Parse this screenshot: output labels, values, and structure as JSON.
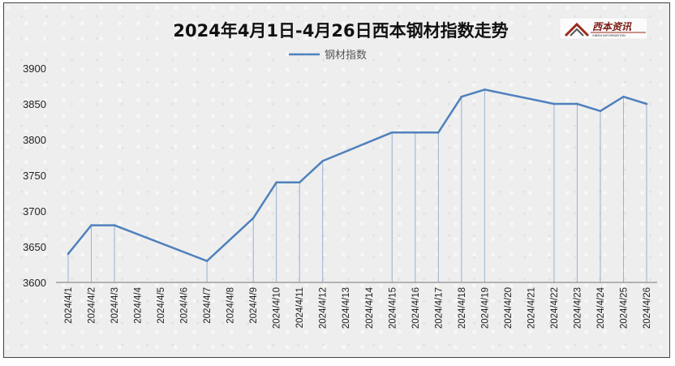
{
  "chart_data": {
    "type": "line",
    "title": "2024年4月1日-4月26日西本钢材指数走势",
    "xlabel": "",
    "ylabel": "",
    "ylim": [
      3600,
      3900
    ],
    "yticks": [
      3600,
      3650,
      3700,
      3750,
      3800,
      3850,
      3900
    ],
    "legend_position": "top",
    "grid": false,
    "drop_lines": true,
    "series_color": "#4f81bd",
    "categories": [
      "2024/4/1",
      "2024/4/2",
      "2024/4/3",
      "2024/4/4",
      "2024/4/5",
      "2024/4/6",
      "2024/4/7",
      "2024/4/8",
      "2024/4/9",
      "2024/4/10",
      "2024/4/11",
      "2024/4/12",
      "2024/4/13",
      "2024/4/14",
      "2024/4/15",
      "2024/4/16",
      "2024/4/17",
      "2024/4/18",
      "2024/4/19",
      "2024/4/20",
      "2024/4/21",
      "2024/4/22",
      "2024/4/23",
      "2024/4/24",
      "2024/4/25",
      "2024/4/26"
    ],
    "series": [
      {
        "name": "钢材指数",
        "values": [
          3640,
          3680,
          3680,
          null,
          null,
          null,
          3630,
          null,
          3690,
          3740,
          3740,
          3770,
          null,
          null,
          3810,
          3810,
          3810,
          3860,
          3870,
          null,
          null,
          3850,
          3850,
          3840,
          3860,
          3850
        ]
      }
    ]
  },
  "logo": {
    "name": "西本资讯",
    "subtitle": "XIBEN INFORMATION",
    "icon": "xiben-logo-icon"
  }
}
